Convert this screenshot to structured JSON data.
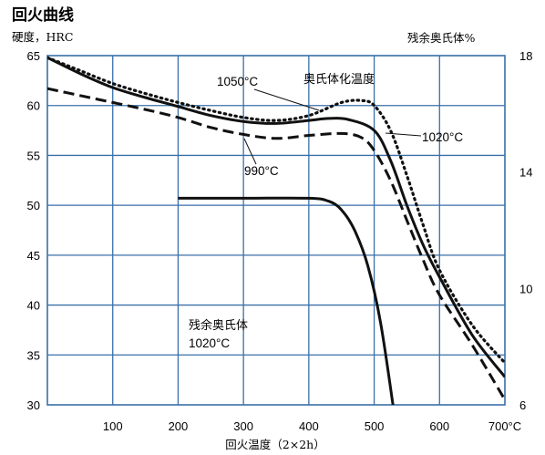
{
  "chart_data": {
    "type": "line",
    "title": "回火曲线",
    "xlabel": "回火温度（2×2h）",
    "ylabel": "硬度，HRC",
    "ylabel_right": "残余奥氏体%",
    "xlim": [
      0,
      700
    ],
    "ylim": [
      30,
      65
    ],
    "ylim_right": [
      6,
      18
    ],
    "grid": true,
    "x_ticks": [
      "100",
      "200",
      "300",
      "400",
      "500",
      "600",
      "700°C"
    ],
    "x_tick_values": [
      100,
      200,
      300,
      400,
      500,
      600,
      700
    ],
    "y_ticks": [
      "65",
      "60",
      "55",
      "50",
      "45",
      "40",
      "35",
      "30"
    ],
    "y_tick_values": [
      65,
      60,
      55,
      50,
      45,
      40,
      35,
      30
    ],
    "y_right_ticks": [
      "18",
      "14",
      "10",
      "6"
    ],
    "y_right_tick_values": [
      18,
      14,
      10,
      6
    ],
    "series": [
      {
        "name": "1050°C",
        "style": "dotted",
        "axis": "left",
        "x": [
          0,
          50,
          100,
          150,
          200,
          250,
          300,
          350,
          400,
          450,
          480,
          500,
          525,
          550,
          575,
          600,
          650,
          700
        ],
        "y": [
          64.8,
          63.5,
          62.2,
          61.2,
          60.3,
          59.5,
          58.8,
          58.5,
          59.0,
          60.3,
          60.5,
          60.0,
          57.5,
          53.0,
          48.0,
          43.5,
          38.0,
          34.2
        ]
      },
      {
        "name": "1020°C",
        "style": "solid",
        "axis": "left",
        "x": [
          0,
          50,
          100,
          150,
          200,
          250,
          300,
          350,
          400,
          430,
          460,
          500,
          525,
          550,
          575,
          600,
          650,
          700
        ],
        "y": [
          64.8,
          63.2,
          61.8,
          60.8,
          59.9,
          59.0,
          58.4,
          58.2,
          58.5,
          58.7,
          58.6,
          57.5,
          54.5,
          50.0,
          46.0,
          42.8,
          37.0,
          32.8
        ]
      },
      {
        "name": "990°C",
        "style": "dashed",
        "axis": "left",
        "x": [
          0,
          50,
          100,
          150,
          200,
          250,
          300,
          350,
          400,
          450,
          480,
          500,
          525,
          550,
          575,
          600,
          650,
          700
        ],
        "y": [
          61.7,
          61.0,
          60.3,
          59.6,
          58.8,
          57.8,
          57.1,
          56.7,
          57.0,
          57.2,
          56.8,
          55.5,
          52.5,
          48.5,
          44.5,
          41.0,
          36.0,
          30.5
        ]
      },
      {
        "name": "残余奥氏体 1020°C",
        "style": "solid",
        "axis": "right",
        "x": [
          200,
          300,
          400,
          430,
          450,
          470,
          490,
          510,
          530
        ],
        "y": [
          13.1,
          13.1,
          13.1,
          13.0,
          12.7,
          12.0,
          10.8,
          8.8,
          5.8
        ]
      }
    ],
    "annotations": {
      "label_1050": "1050°C",
      "label_austenitizing": "奥氏体化温度",
      "label_1020": "1020°C",
      "label_990": "990°C",
      "label_retained_line1": "残余奥氏体",
      "label_retained_line2": "1020°C"
    }
  },
  "colors": {
    "grid": "#3a6fa8",
    "curve": "#111111",
    "text": "#111111"
  }
}
